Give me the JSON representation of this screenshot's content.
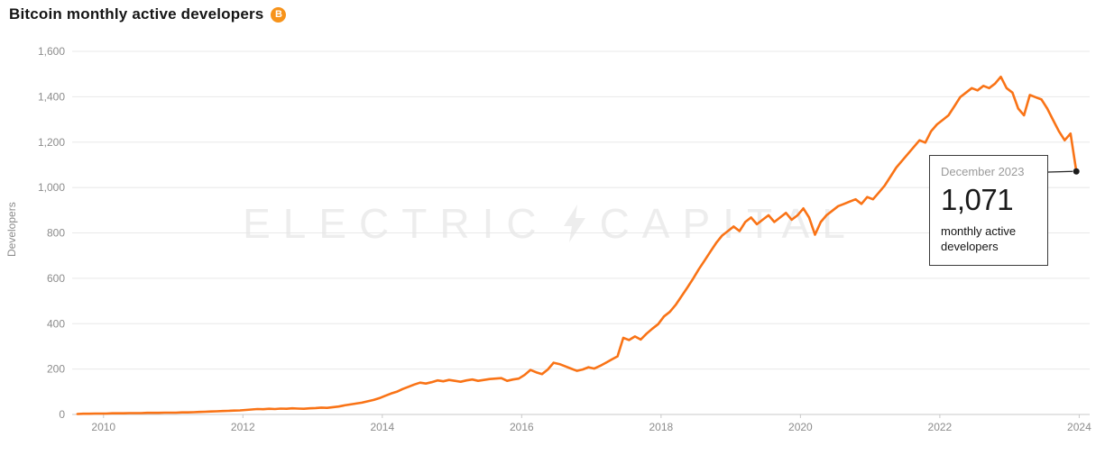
{
  "header": {
    "title": "Bitcoin monthly active developers",
    "bitcoin_symbol": "B"
  },
  "watermark": {
    "left": "ELECTRIC",
    "right": "CAPITAL"
  },
  "tooltip": {
    "date": "December 2023",
    "value": "1,071",
    "label_line1": "monthly active",
    "label_line2": "developers"
  },
  "colors": {
    "line": "#F97316",
    "bitcoin_orange": "#F7931A",
    "grid": "#E8E8E8",
    "tick_text": "#8C8C8C",
    "watermark": "#EDEDED",
    "tooltip_border": "#3A3A3A"
  },
  "chart_data": {
    "type": "line",
    "title": "Bitcoin monthly active developers",
    "xlabel": "",
    "ylabel": "Developers",
    "grid": true,
    "line_color": "#F97316",
    "xlim": [
      2009.55,
      2024.15
    ],
    "ylim": [
      0,
      1600
    ],
    "x_ticks": [
      2010,
      2012,
      2014,
      2016,
      2018,
      2020,
      2022,
      2024
    ],
    "y_ticks": [
      0,
      200,
      400,
      600,
      800,
      1000,
      1200,
      1400,
      1600
    ],
    "x_start_year": 2009,
    "x_start_month": 8,
    "frequency": "monthly",
    "annotation": {
      "x_label": "December 2023",
      "y_value": 1071,
      "text": "monthly active developers"
    },
    "values": [
      2,
      3,
      3,
      4,
      4,
      4,
      5,
      5,
      5,
      6,
      6,
      6,
      7,
      7,
      7,
      8,
      8,
      8,
      9,
      9,
      10,
      11,
      12,
      13,
      14,
      15,
      16,
      17,
      18,
      20,
      22,
      24,
      23,
      25,
      24,
      26,
      25,
      27,
      26,
      25,
      27,
      28,
      30,
      29,
      32,
      35,
      40,
      44,
      48,
      52,
      58,
      64,
      72,
      82,
      92,
      100,
      112,
      122,
      132,
      140,
      136,
      142,
      150,
      146,
      152,
      148,
      144,
      150,
      154,
      148,
      152,
      156,
      158,
      160,
      148,
      154,
      158,
      174,
      196,
      186,
      178,
      198,
      228,
      222,
      212,
      202,
      192,
      198,
      208,
      202,
      214,
      228,
      242,
      256,
      338,
      328,
      344,
      330,
      356,
      378,
      398,
      432,
      452,
      482,
      520,
      558,
      598,
      640,
      678,
      718,
      756,
      788,
      808,
      828,
      808,
      848,
      868,
      838,
      858,
      878,
      848,
      868,
      888,
      858,
      878,
      908,
      868,
      792,
      848,
      878,
      898,
      918,
      928,
      938,
      948,
      928,
      958,
      948,
      978,
      1008,
      1048,
      1088,
      1118,
      1148,
      1178,
      1208,
      1198,
      1248,
      1278,
      1298,
      1318,
      1358,
      1398,
      1418,
      1438,
      1428,
      1448,
      1438,
      1458,
      1488,
      1438,
      1418,
      1348,
      1318,
      1408,
      1398,
      1388,
      1348,
      1298,
      1248,
      1208,
      1238,
      1071
    ]
  }
}
